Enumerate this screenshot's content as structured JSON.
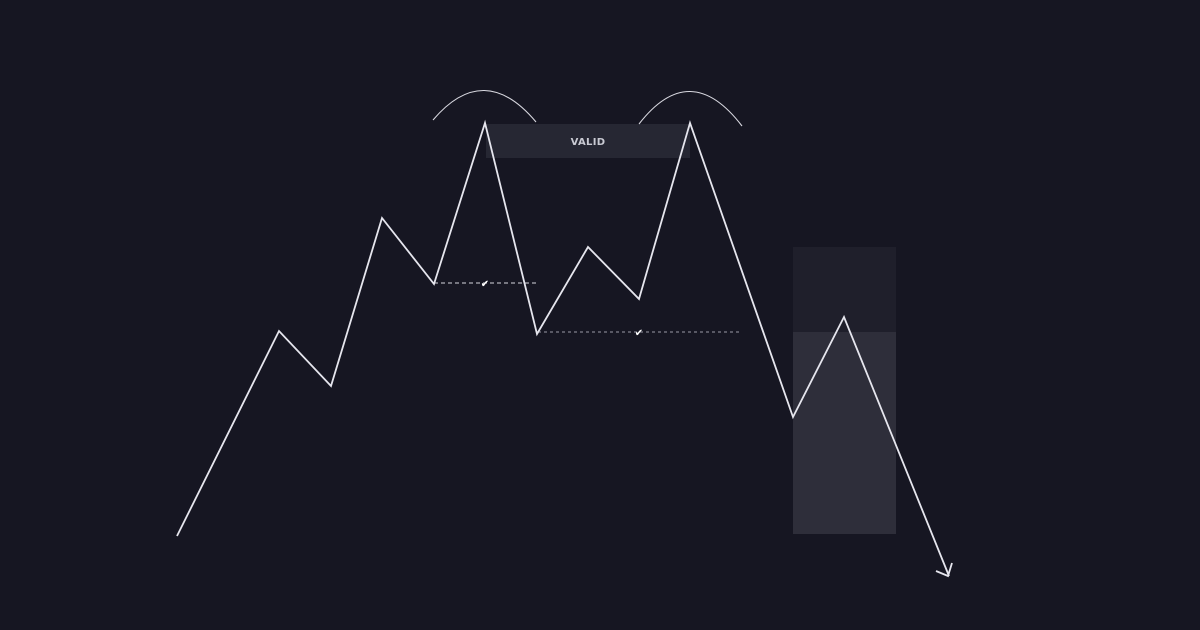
{
  "diagram": {
    "valid_label": "VALID",
    "check_mark": "✔",
    "colors": {
      "background": "#161622",
      "line": "#e6e6ee",
      "valid_box": "#262733",
      "zone_upper": "#1f1f2b",
      "zone_lower": "#2e2e3a"
    }
  }
}
